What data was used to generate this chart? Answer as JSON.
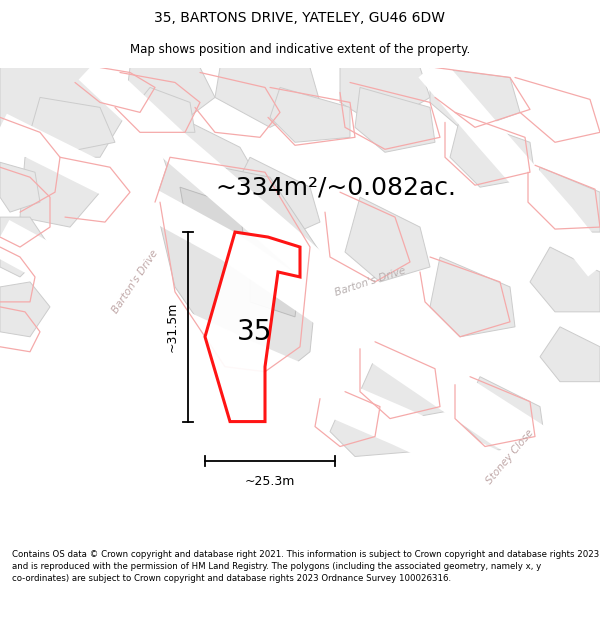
{
  "title": "35, BARTONS DRIVE, YATELEY, GU46 6DW",
  "subtitle": "Map shows position and indicative extent of the property.",
  "area_text": "~334m²/~0.082ac.",
  "number_label": "35",
  "dim_width": "~25.3m",
  "dim_height": "~31.5m",
  "footer": "Contains OS data © Crown copyright and database right 2021. This information is subject to Crown copyright and database rights 2023 and is reproduced with the permission of HM Land Registry. The polygons (including the associated geometry, namely x, y co-ordinates) are subject to Crown copyright and database rights 2023 Ordnance Survey 100026316.",
  "bg_color": "#ffffff",
  "map_bg": "#f7f7f7",
  "building_fill": "#e8e8e8",
  "building_edge": "#cccccc",
  "highlight_color": "#ff0000",
  "plot_outline_color": "#f5aaaa",
  "street_label_color": "#c0a8a8",
  "title_fontsize": 10,
  "subtitle_fontsize": 8.5,
  "area_fontsize": 18,
  "number_fontsize": 20,
  "dim_fontsize": 9,
  "footer_fontsize": 6.2
}
